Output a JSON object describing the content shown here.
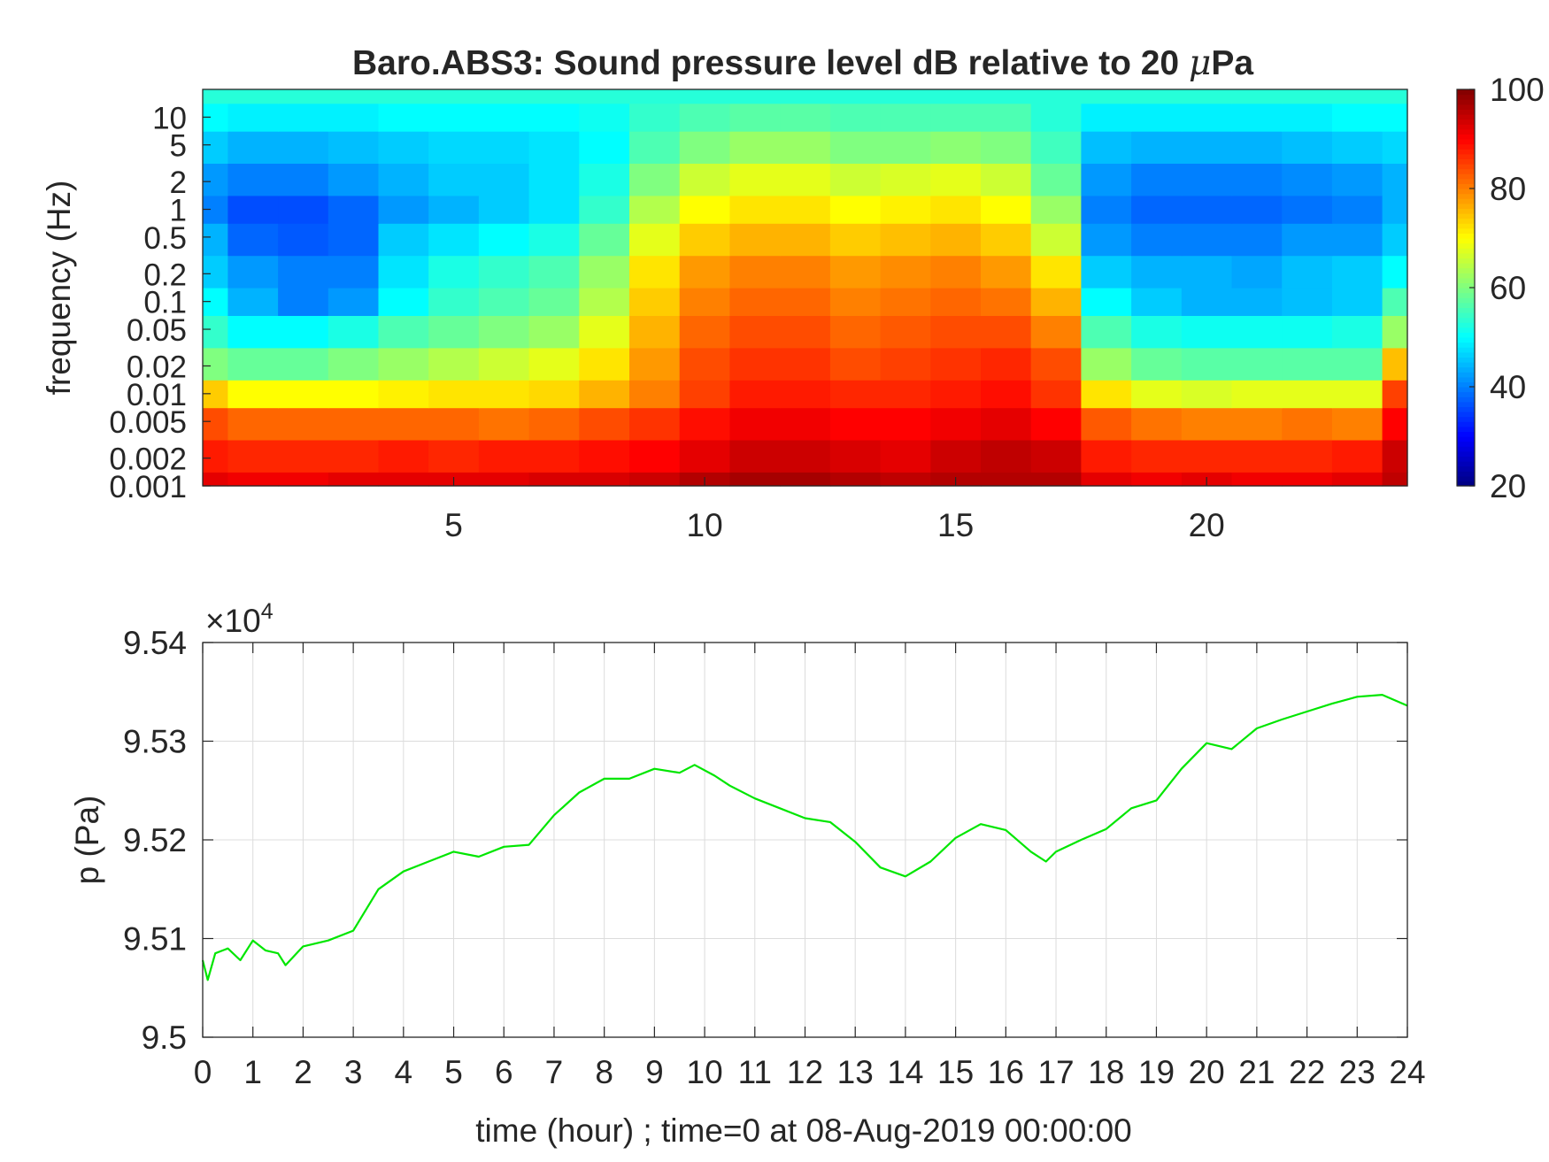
{
  "chart_data": [
    {
      "type": "heatmap",
      "title": "Baro.ABS3: Sound pressure level dB relative to 20 μPa",
      "title_main": "Baro.ABS3: Sound pressure level dB relative to 20 ",
      "title_mu": "μ",
      "title_unit_tail": "Pa",
      "ylabel": "frequency (Hz)",
      "xlabel": "",
      "y_scale": "log",
      "xlim": [
        0,
        24
      ],
      "ylim": [
        0.001,
        20
      ],
      "x_ticks": [
        5,
        10,
        15,
        20
      ],
      "x_tick_labels": [
        "5",
        "10",
        "15",
        "20"
      ],
      "y_ticks": [
        0.001,
        0.002,
        0.005,
        0.01,
        0.02,
        0.05,
        0.1,
        0.2,
        0.5,
        1,
        2,
        5,
        10
      ],
      "y_tick_labels": [
        "0.001",
        "0.002",
        "0.005",
        "0.01",
        "0.02",
        "0.05",
        "0.1",
        "0.2",
        "0.5",
        "1",
        "2",
        "5",
        "10"
      ],
      "colormap": "jet",
      "color_range": [
        20,
        100
      ],
      "colorbar_ticks": [
        20,
        40,
        60,
        80,
        100
      ],
      "colorbar_tick_labels": [
        "20",
        "40",
        "60",
        "80",
        "100"
      ],
      "time_hours": [
        0,
        1,
        2,
        3,
        4,
        5,
        6,
        7,
        8,
        9,
        10,
        11,
        12,
        13,
        14,
        15,
        16,
        17,
        18,
        19,
        20,
        21,
        22,
        23,
        24
      ],
      "frequency_hz": [
        0.001,
        0.002,
        0.005,
        0.01,
        0.02,
        0.05,
        0.1,
        0.2,
        0.5,
        1,
        2,
        5,
        10,
        20
      ],
      "level_db": [
        [
          92,
          91,
          91,
          92,
          92,
          92,
          92,
          93,
          93,
          94,
          96,
          97,
          97,
          96,
          95,
          96,
          96,
          96,
          92,
          91,
          92,
          91,
          91,
          92,
          95
        ],
        [
          88,
          87,
          87,
          87,
          88,
          87,
          88,
          88,
          89,
          90,
          92,
          94,
          94,
          93,
          92,
          94,
          95,
          94,
          88,
          87,
          87,
          87,
          87,
          88,
          94
        ],
        [
          84,
          82,
          82,
          82,
          82,
          82,
          81,
          82,
          84,
          86,
          89,
          91,
          91,
          90,
          90,
          91,
          92,
          90,
          83,
          81,
          80,
          80,
          81,
          80,
          90
        ],
        [
          74,
          70,
          70,
          70,
          71,
          72,
          72,
          73,
          76,
          80,
          85,
          88,
          88,
          87,
          87,
          88,
          89,
          86,
          72,
          68,
          67,
          68,
          68,
          68,
          85
        ],
        [
          60,
          58,
          58,
          60,
          62,
          64,
          66,
          68,
          72,
          78,
          84,
          86,
          86,
          84,
          85,
          86,
          87,
          84,
          62,
          58,
          57,
          57,
          57,
          57,
          75
        ],
        [
          54,
          50,
          50,
          52,
          56,
          58,
          60,
          62,
          68,
          76,
          82,
          84,
          84,
          82,
          83,
          84,
          84,
          80,
          56,
          52,
          51,
          51,
          51,
          52,
          62
        ],
        [
          50,
          44,
          40,
          42,
          50,
          54,
          56,
          58,
          64,
          74,
          80,
          82,
          82,
          80,
          81,
          82,
          81,
          76,
          50,
          46,
          44,
          44,
          45,
          46,
          56
        ],
        [
          46,
          42,
          40,
          40,
          48,
          52,
          54,
          56,
          62,
          72,
          78,
          80,
          80,
          78,
          79,
          80,
          78,
          72,
          46,
          44,
          44,
          43,
          45,
          46,
          50
        ],
        [
          44,
          38,
          37,
          38,
          46,
          48,
          50,
          52,
          58,
          68,
          74,
          76,
          76,
          74,
          75,
          76,
          74,
          66,
          42,
          40,
          40,
          40,
          42,
          42,
          46
        ],
        [
          40,
          36,
          36,
          38,
          42,
          44,
          46,
          48,
          54,
          64,
          70,
          72,
          72,
          70,
          71,
          72,
          70,
          62,
          40,
          38,
          38,
          38,
          39,
          40,
          44
        ],
        [
          42,
          40,
          40,
          42,
          44,
          46,
          46,
          48,
          52,
          60,
          66,
          68,
          68,
          66,
          67,
          68,
          66,
          58,
          42,
          40,
          40,
          40,
          41,
          42,
          44
        ],
        [
          46,
          44,
          44,
          45,
          46,
          47,
          47,
          48,
          50,
          56,
          60,
          62,
          62,
          60,
          60,
          61,
          60,
          55,
          45,
          44,
          44,
          44,
          45,
          46,
          47
        ],
        [
          50,
          49,
          49,
          49,
          50,
          50,
          50,
          50,
          51,
          54,
          56,
          57,
          57,
          56,
          56,
          56,
          56,
          53,
          49,
          49,
          49,
          49,
          49,
          50,
          50
        ],
        [
          53,
          53,
          53,
          53,
          53,
          53,
          53,
          53,
          53,
          53,
          53,
          53,
          53,
          53,
          53,
          53,
          53,
          53,
          53,
          53,
          53,
          53,
          53,
          53,
          53
        ]
      ]
    },
    {
      "type": "line",
      "ylabel": "p (Pa)",
      "xlabel": "time (hour) ; time=0 at 08-Aug-2019 00:00:00",
      "xlim": [
        0,
        24
      ],
      "ylim": [
        95000,
        95400
      ],
      "exponent_base": "×10",
      "exponent_power": "4",
      "x_ticks": [
        0,
        1,
        2,
        3,
        4,
        5,
        6,
        7,
        8,
        9,
        10,
        11,
        12,
        13,
        14,
        15,
        16,
        17,
        18,
        19,
        20,
        21,
        22,
        23,
        24
      ],
      "x_tick_labels": [
        "0",
        "1",
        "2",
        "3",
        "4",
        "5",
        "6",
        "7",
        "8",
        "9",
        "10",
        "11",
        "12",
        "13",
        "14",
        "15",
        "16",
        "17",
        "18",
        "19",
        "20",
        "21",
        "22",
        "23",
        "24"
      ],
      "y_ticks": [
        95000,
        95100,
        95200,
        95300,
        95400
      ],
      "y_tick_labels": [
        "9.5",
        "9.51",
        "9.52",
        "9.53",
        "9.54"
      ],
      "grid": true,
      "line_color": "#00e600",
      "x": [
        0,
        0.1,
        0.25,
        0.5,
        0.75,
        1,
        1.25,
        1.5,
        1.65,
        2,
        2.5,
        3,
        3.5,
        4,
        4.5,
        5,
        5.5,
        6,
        6.5,
        7,
        7.5,
        8,
        8.5,
        9,
        9.5,
        9.8,
        10.2,
        10.5,
        11,
        11.5,
        12,
        12.5,
        13,
        13.5,
        14,
        14.5,
        15,
        15.5,
        16,
        16.5,
        16.8,
        17,
        17.5,
        18,
        18.5,
        19,
        19.5,
        20,
        20.5,
        21,
        21.5,
        22,
        22.5,
        23,
        23.5,
        24
      ],
      "y": [
        95078,
        95058,
        95085,
        95090,
        95078,
        95098,
        95088,
        95085,
        95073,
        95092,
        95098,
        95108,
        95150,
        95168,
        95178,
        95188,
        95183,
        95193,
        95195,
        95225,
        95248,
        95262,
        95262,
        95272,
        95268,
        95276,
        95265,
        95255,
        95242,
        95232,
        95222,
        95218,
        95198,
        95172,
        95163,
        95178,
        95202,
        95216,
        95210,
        95188,
        95178,
        95188,
        95200,
        95211,
        95232,
        95240,
        95272,
        95298,
        95292,
        95313,
        95322,
        95330,
        95338,
        95345,
        95347,
        95336
      ]
    }
  ]
}
